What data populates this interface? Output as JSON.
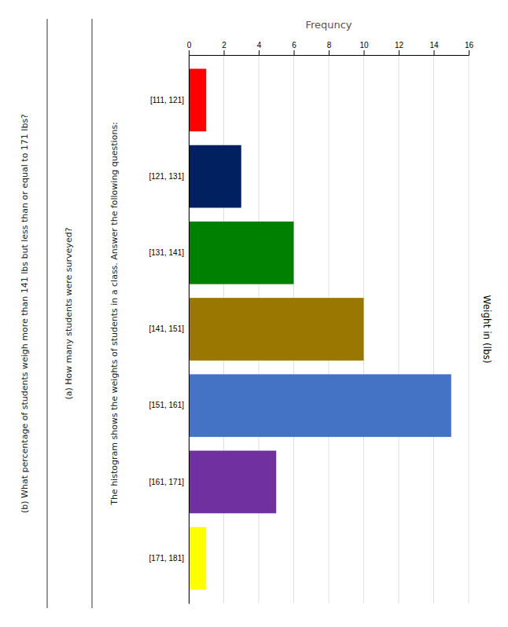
{
  "chart_data": {
    "type": "bar",
    "orientation": "horizontal",
    "title": "The histogram shows the weights of students in a class. Answer the following questions:",
    "annotations": [
      "(a) How many students were surveyed?",
      "(b) What percentage of students weigh more than 141 lbs but less than or equal to 171 lbs?"
    ],
    "categories": [
      "[111, 121]",
      "[121, 131]",
      "[131, 141]",
      "[141, 151]",
      "[151, 161]",
      "[161, 171]",
      "[171, 181]"
    ],
    "values": [
      1,
      3,
      6,
      10,
      15,
      5,
      1
    ],
    "colors": [
      "#ff0000",
      "#002060",
      "#008000",
      "#997700",
      "#4472c4",
      "#7030a0",
      "#ffff00"
    ],
    "xlabel": "Frequncy",
    "ylabel": "Weight in (lbs)",
    "xlim": [
      0,
      16
    ],
    "xticks": [
      0,
      2,
      4,
      6,
      8,
      10,
      12,
      14,
      16
    ],
    "grid": true
  }
}
